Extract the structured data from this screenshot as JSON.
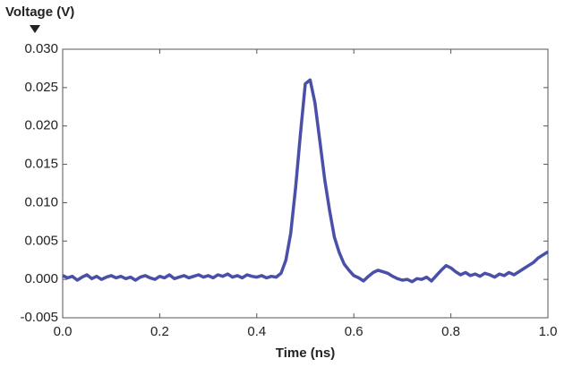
{
  "chart_data": {
    "type": "line",
    "title": "Voltage (V)",
    "x_label": "Time (ns)",
    "x": [
      0.0,
      0.01,
      0.02,
      0.03,
      0.04,
      0.05,
      0.06,
      0.07,
      0.08,
      0.09,
      0.1,
      0.11,
      0.12,
      0.13,
      0.14,
      0.15,
      0.16,
      0.17,
      0.18,
      0.19,
      0.2,
      0.21,
      0.22,
      0.23,
      0.24,
      0.25,
      0.26,
      0.27,
      0.28,
      0.29,
      0.3,
      0.31,
      0.32,
      0.33,
      0.34,
      0.35,
      0.36,
      0.37,
      0.38,
      0.39,
      0.4,
      0.41,
      0.42,
      0.43,
      0.44,
      0.45,
      0.46,
      0.47,
      0.48,
      0.49,
      0.5,
      0.51,
      0.52,
      0.53,
      0.54,
      0.55,
      0.56,
      0.57,
      0.58,
      0.59,
      0.6,
      0.61,
      0.62,
      0.63,
      0.64,
      0.65,
      0.66,
      0.67,
      0.68,
      0.69,
      0.7,
      0.71,
      0.72,
      0.73,
      0.74,
      0.75,
      0.76,
      0.77,
      0.78,
      0.79,
      0.8,
      0.81,
      0.82,
      0.83,
      0.84,
      0.85,
      0.86,
      0.87,
      0.88,
      0.89,
      0.9,
      0.91,
      0.92,
      0.93,
      0.94,
      0.95,
      0.96,
      0.97,
      0.98,
      0.99,
      1.0
    ],
    "series": [
      {
        "name": "Voltage",
        "color": "#4a4fa8",
        "values": [
          0.0005,
          0.0002,
          0.0004,
          -0.0001,
          0.0003,
          0.0006,
          0.0001,
          0.0004,
          0.0,
          0.0003,
          0.0005,
          0.0002,
          0.0004,
          0.0001,
          0.0003,
          -0.0001,
          0.0003,
          0.0005,
          0.0002,
          0.0,
          0.0004,
          0.0002,
          0.0006,
          0.0001,
          0.0003,
          0.0005,
          0.0002,
          0.0004,
          0.0006,
          0.0003,
          0.0005,
          0.0002,
          0.0006,
          0.0004,
          0.0007,
          0.0003,
          0.0005,
          0.0002,
          0.0006,
          0.0004,
          0.0003,
          0.0005,
          0.0002,
          0.0004,
          0.0003,
          0.0008,
          0.0025,
          0.006,
          0.012,
          0.019,
          0.0255,
          0.026,
          0.023,
          0.018,
          0.013,
          0.009,
          0.0055,
          0.0035,
          0.002,
          0.0012,
          0.0005,
          0.0002,
          -0.0002,
          0.0004,
          0.0009,
          0.0012,
          0.001,
          0.0008,
          0.0004,
          0.0001,
          -0.0001,
          0.0,
          -0.0003,
          0.0001,
          0.0,
          0.0003,
          -0.0002,
          0.0005,
          0.0012,
          0.0018,
          0.0015,
          0.001,
          0.0006,
          0.0009,
          0.0005,
          0.0007,
          0.0004,
          0.0008,
          0.0006,
          0.0003,
          0.0007,
          0.0005,
          0.0009,
          0.0006,
          0.001,
          0.0014,
          0.0018,
          0.0022,
          0.0028,
          0.0032,
          0.0036
        ]
      }
    ],
    "xlim": [
      0,
      1
    ],
    "xticks": [
      {
        "value": 0,
        "label": "0.0"
      },
      0.2,
      0.4,
      0.6,
      0.8,
      {
        "value": 1,
        "label": "1.0"
      }
    ],
    "ylim": [
      -0.005,
      0.03
    ],
    "yticks": [
      -0.005,
      {
        "value": 0,
        "label": "0.000"
      },
      0.005,
      {
        "value": 0.01,
        "label": "0.010"
      },
      0.015,
      {
        "value": 0.02,
        "label": "0.020"
      },
      0.025,
      {
        "value": 0.03,
        "label": "0.030"
      }
    ],
    "grid": false
  }
}
